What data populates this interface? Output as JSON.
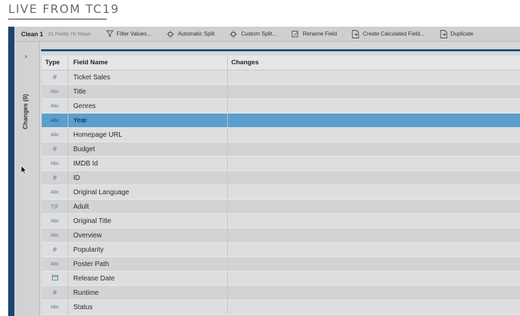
{
  "banner": {
    "title": "LIVE FROM TC19"
  },
  "toolbar": {
    "step_name": "Clean 1",
    "meta": "21 Fields  7K Rows",
    "items": [
      {
        "label": "Filter Values...",
        "icon": "filter-icon"
      },
      {
        "label": "Automatic Split",
        "icon": "split-icon"
      },
      {
        "label": "Custom Split...",
        "icon": "custom-split-icon"
      },
      {
        "label": "Rename Field",
        "icon": "rename-icon"
      },
      {
        "label": "Create Calculated Field...",
        "icon": "calculated-field-icon"
      },
      {
        "label": "Duplicate",
        "icon": "duplicate-icon"
      }
    ]
  },
  "sidebar": {
    "toggle": "›",
    "label": "Changes (0)"
  },
  "table": {
    "columns": {
      "type": "Type",
      "name": "Field Name",
      "changes": "Changes"
    },
    "rows": [
      {
        "type": "#",
        "name": "Ticket Sales"
      },
      {
        "type": "Abc",
        "name": "Title"
      },
      {
        "type": "Abc",
        "name": "Genres"
      },
      {
        "type": "Abc",
        "name": "Year",
        "selected": true
      },
      {
        "type": "Abc",
        "name": "Homepage URL"
      },
      {
        "type": "#",
        "name": "Budget"
      },
      {
        "type": "Abc",
        "name": "IMDB Id"
      },
      {
        "type": "#",
        "name": "ID"
      },
      {
        "type": "Abc",
        "name": "Original Language"
      },
      {
        "type": "T|F",
        "name": "Adult"
      },
      {
        "type": "Abc",
        "name": "Original Title"
      },
      {
        "type": "Abc",
        "name": "Overview"
      },
      {
        "type": "#",
        "name": "Popularity"
      },
      {
        "type": "Abc",
        "name": "Poster Path"
      },
      {
        "type": "date",
        "name": "Release Date"
      },
      {
        "type": "#",
        "name": "Runtime"
      },
      {
        "type": "Abc",
        "name": "Status"
      }
    ]
  },
  "colors": {
    "accent": "#1e4d78",
    "selection": "#5b9fcd",
    "type_icon": "#4a7aa0"
  }
}
